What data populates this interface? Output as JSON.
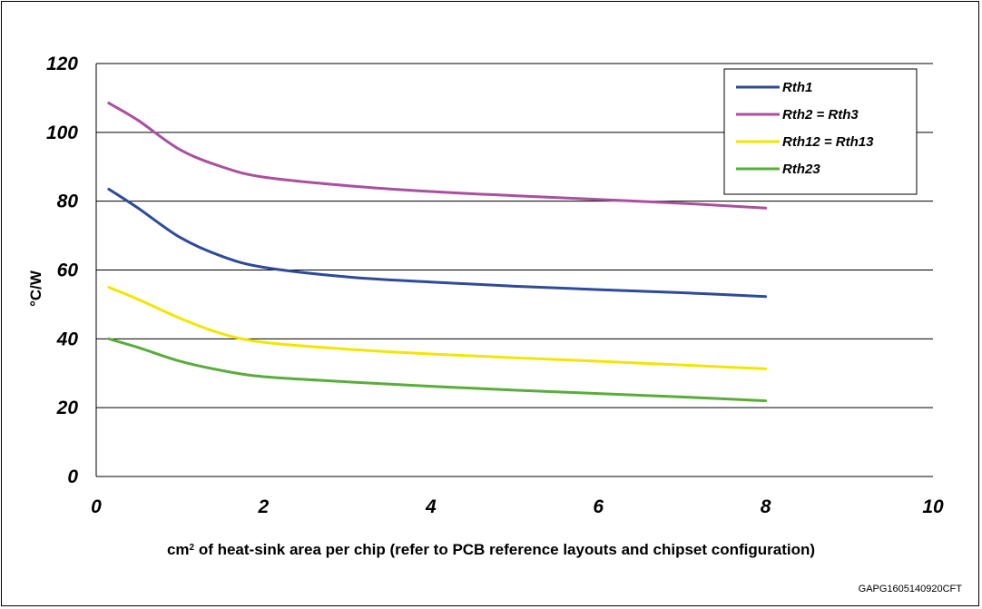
{
  "chart_data": {
    "type": "line",
    "title": "",
    "xlabel_prefix": "cm",
    "xlabel_sup": "2",
    "xlabel_rest": " of heat-sink area per chip (refer to PCB reference layouts and chipset configuration)",
    "ylabel": "°C/W",
    "xlim": [
      0,
      10
    ],
    "ylim": [
      0,
      120
    ],
    "xticks": [
      "0",
      "2",
      "4",
      "6",
      "8",
      "10"
    ],
    "yticks": [
      "0",
      "20",
      "40",
      "60",
      "80",
      "100",
      "120"
    ],
    "grid": "horizontal",
    "legend_position": "top-right",
    "series": [
      {
        "name": "Rth1",
        "color": "#2e4a9a",
        "x": [
          0.15,
          0.5,
          1,
          1.5,
          2,
          3,
          4,
          5,
          6,
          7,
          8
        ],
        "y": [
          83.5,
          78,
          69.5,
          64,
          60.8,
          58,
          56.5,
          55.3,
          54.3,
          53.4,
          52.3
        ]
      },
      {
        "name": "Rth2 = Rth3",
        "color": "#a9509f",
        "x": [
          0.15,
          0.5,
          1,
          1.5,
          2,
          3,
          4,
          5,
          6,
          7,
          8
        ],
        "y": [
          108.5,
          103.5,
          95,
          90,
          87,
          84.5,
          82.8,
          81.6,
          80.5,
          79.4,
          78
        ]
      },
      {
        "name": "Rth12 = Rth13",
        "color": "#f2e600",
        "x": [
          0.15,
          0.5,
          1,
          1.5,
          2,
          3,
          4,
          5,
          6,
          7,
          8
        ],
        "y": [
          55,
          51.5,
          46,
          41.5,
          39,
          37,
          35.6,
          34.5,
          33.5,
          32.4,
          31.3
        ]
      },
      {
        "name": "Rth23",
        "color": "#5aac3c",
        "x": [
          0.15,
          0.5,
          1,
          1.5,
          2,
          3,
          4,
          5,
          6,
          7,
          8
        ],
        "y": [
          40,
          37.5,
          33.5,
          30.8,
          29,
          27.5,
          26.2,
          25.1,
          24.1,
          23.1,
          22
        ]
      }
    ]
  },
  "footer": {
    "code": "GAPG1605140920CFT"
  }
}
